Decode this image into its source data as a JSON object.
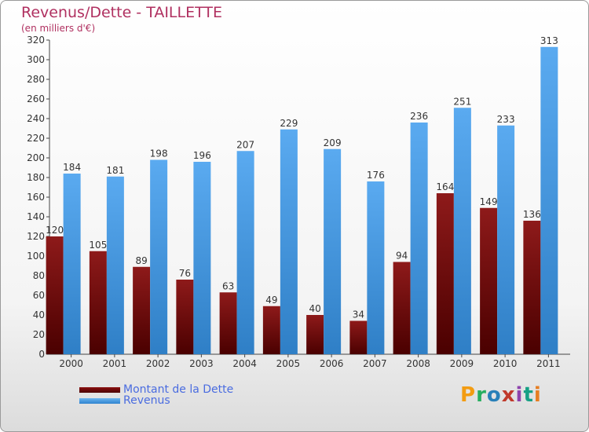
{
  "chart_data": {
    "type": "bar",
    "title": "Revenus/Dette - TAILLETTE",
    "subtitle": "(en milliers d'€)",
    "categories": [
      "2000",
      "2001",
      "2002",
      "2003",
      "2004",
      "2005",
      "2006",
      "2007",
      "2008",
      "2009",
      "2010",
      "2011"
    ],
    "series": [
      {
        "name": "Montant de la Dette",
        "color": "#7a0f0f",
        "values": [
          120,
          105,
          89,
          76,
          63,
          49,
          40,
          34,
          94,
          164,
          149,
          136
        ]
      },
      {
        "name": "Revenus",
        "color": "#4aa0e6",
        "values": [
          184,
          181,
          198,
          196,
          207,
          229,
          209,
          176,
          236,
          251,
          233,
          313
        ]
      }
    ],
    "ylim": [
      0,
      320
    ],
    "ytick_step": 20,
    "grid": false,
    "legend_position": "bottom-left"
  },
  "logo": {
    "text": "Proxiti",
    "letters": [
      "P",
      "r",
      "o",
      "x",
      "i",
      "t",
      "i"
    ]
  }
}
